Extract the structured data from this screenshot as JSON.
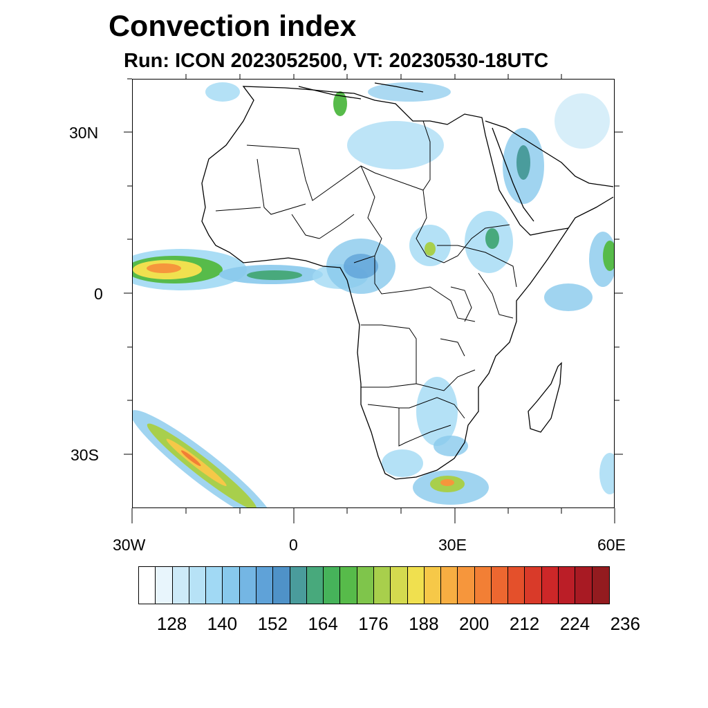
{
  "title": "Convection index",
  "subtitle": "Run: ICON 2023052500,  VT: 20230530-18UTC",
  "axes": {
    "lat_labels": [
      "30N",
      "0",
      "30S"
    ],
    "lon_labels": [
      "30W",
      "0",
      "30E",
      "60E"
    ]
  },
  "colorbar": {
    "colors": [
      "#ffffff",
      "#e8f5fc",
      "#cdeaf8",
      "#b7e2f6",
      "#a1d9f4",
      "#88c9ec",
      "#74b6e4",
      "#5fa2d8",
      "#4f92c8",
      "#4a9c9c",
      "#48a97c",
      "#46b35a",
      "#57bb4a",
      "#7fc54b",
      "#a8cf4c",
      "#d4da4f",
      "#f0e04f",
      "#f6c848",
      "#f7ae42",
      "#f6963c",
      "#f27f35",
      "#ed6730",
      "#e4502b",
      "#d93a29",
      "#cd2728",
      "#bb1e27",
      "#a81a23",
      "#931b1f"
    ],
    "tick_labels": [
      "128",
      "140",
      "152",
      "164",
      "176",
      "188",
      "200",
      "212",
      "224",
      "236"
    ]
  }
}
